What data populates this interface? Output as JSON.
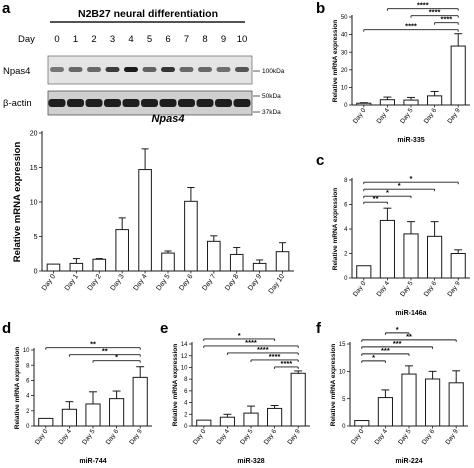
{
  "panels": {
    "a": "a",
    "b": "b",
    "c": "c",
    "d": "d",
    "e": "e",
    "f": "f"
  },
  "blot": {
    "title": "N2B27 neural differentiation",
    "day_label": "Day",
    "days": [
      "0",
      "1",
      "2",
      "3",
      "4",
      "5",
      "6",
      "7",
      "8",
      "9",
      "10"
    ],
    "lane_intensity": [
      0.25,
      0.35,
      0.35,
      0.7,
      0.95,
      0.4,
      0.75,
      0.35,
      0.35,
      0.3,
      0.5
    ],
    "rows": [
      {
        "label": "Npas4",
        "markers": [
          "100kDa"
        ]
      },
      {
        "label": "β-actin",
        "markers": [
          "50kDa",
          "37kDa"
        ]
      }
    ]
  },
  "chart_data": [
    {
      "id": "a",
      "type": "bar",
      "title": "Npas4",
      "ylabel": "Relative mRNA expression",
      "xlabel": "",
      "categories": [
        "Day 0",
        "Day 1",
        "Day 2",
        "Day 3",
        "Day 4",
        "Day 5",
        "Day 6",
        "Day 7",
        "Day 8",
        "Day 9",
        "Day 10"
      ],
      "values": [
        1.0,
        1.1,
        1.7,
        6.0,
        14.7,
        2.6,
        10.1,
        4.3,
        2.4,
        1.1,
        2.8
      ],
      "errors": [
        0.0,
        0.7,
        0.1,
        1.7,
        3.0,
        0.3,
        2.0,
        0.8,
        1.0,
        0.5,
        1.3
      ],
      "ylim": [
        0,
        20
      ],
      "yticks": [
        0,
        5,
        10,
        15,
        20
      ],
      "significance": []
    },
    {
      "id": "b",
      "type": "bar",
      "title": "",
      "ylabel": "Relative mRNA expression",
      "xlabel": "miR-335",
      "categories": [
        "Day 0",
        "Day 4",
        "Day 5",
        "Day 6",
        "Day 9"
      ],
      "values": [
        1.0,
        3.0,
        2.8,
        5.2,
        33.5
      ],
      "errors": [
        0.3,
        1.5,
        1.5,
        2.5,
        7.0
      ],
      "ylim": [
        0,
        50
      ],
      "yticks": [
        0,
        10,
        20,
        30,
        40,
        50
      ],
      "significance": [
        {
          "from": 4,
          "to": 1,
          "label": "****"
        },
        {
          "from": 4,
          "to": 2,
          "label": "****"
        },
        {
          "from": 4,
          "to": 3,
          "label": "****"
        },
        {
          "from": 4,
          "to": 0,
          "label": "****"
        }
      ]
    },
    {
      "id": "c",
      "type": "bar",
      "title": "",
      "ylabel": "Relative mRNA expression",
      "xlabel": "miR-146a",
      "categories": [
        "Day 0",
        "Day 4",
        "Day 5",
        "Day 6",
        "Day 9"
      ],
      "values": [
        1.0,
        4.7,
        3.6,
        3.4,
        2.0
      ],
      "errors": [
        0.0,
        1.0,
        1.0,
        1.2,
        0.3
      ],
      "ylim": [
        0,
        8
      ],
      "yticks": [
        0,
        2,
        4,
        6,
        8
      ],
      "significance": [
        {
          "from": 0,
          "to": 1,
          "label": "**"
        },
        {
          "from": 0,
          "to": 2,
          "label": "*"
        },
        {
          "from": 0,
          "to": 3,
          "label": "*"
        },
        {
          "from": 0,
          "to": 4,
          "label": "*"
        }
      ]
    },
    {
      "id": "d",
      "type": "bar",
      "title": "",
      "ylabel": "Relative mRNA expression",
      "xlabel": "miR-744",
      "categories": [
        "Day 0",
        "Day 4",
        "Day 5",
        "Day 6",
        "Day 9"
      ],
      "values": [
        1.0,
        2.2,
        2.9,
        3.6,
        6.4
      ],
      "errors": [
        0.0,
        1.0,
        1.6,
        1.0,
        1.4
      ],
      "ylim": [
        0,
        10
      ],
      "yticks": [
        0,
        2,
        4,
        6,
        8,
        10
      ],
      "significance": [
        {
          "from": 4,
          "to": 2,
          "label": "*"
        },
        {
          "from": 4,
          "to": 1,
          "label": "**"
        },
        {
          "from": 4,
          "to": 0,
          "label": "**"
        }
      ]
    },
    {
      "id": "e",
      "type": "bar",
      "title": "",
      "ylabel": "Relative mRNA expression",
      "xlabel": "miR-328",
      "categories": [
        "Day 0",
        "Day 4",
        "Day 5",
        "Day 6",
        "Day 9"
      ],
      "values": [
        1.0,
        1.5,
        2.2,
        3.0,
        9.0
      ],
      "errors": [
        0.0,
        0.5,
        1.2,
        0.5,
        0.4
      ],
      "ylim": [
        0,
        14
      ],
      "yticks": [
        0,
        2,
        4,
        6,
        8,
        10,
        12,
        14
      ],
      "significance": [
        {
          "from": 0,
          "to": 3,
          "label": "*"
        },
        {
          "from": 4,
          "to": 0,
          "label": "****"
        },
        {
          "from": 4,
          "to": 1,
          "label": "****"
        },
        {
          "from": 4,
          "to": 2,
          "label": "****"
        },
        {
          "from": 4,
          "to": 3,
          "label": "****"
        }
      ]
    },
    {
      "id": "f",
      "type": "bar",
      "title": "",
      "ylabel": "Relative mRNA expression",
      "xlabel": "miR-224",
      "categories": [
        "Day 0",
        "Day 4",
        "Day 5",
        "Day 6",
        "Day 9"
      ],
      "values": [
        1.0,
        5.2,
        9.5,
        8.6,
        7.9
      ],
      "errors": [
        0.0,
        1.4,
        1.5,
        1.4,
        2.2
      ],
      "ylim": [
        0,
        15
      ],
      "yticks": [
        0,
        5,
        10,
        15
      ],
      "significance": [
        {
          "from": 0,
          "to": 1,
          "label": "*"
        },
        {
          "from": 0,
          "to": 2,
          "label": "***"
        },
        {
          "from": 0,
          "to": 3,
          "label": "***"
        },
        {
          "from": 0,
          "to": 4,
          "label": "**"
        },
        {
          "from": 1,
          "to": 2,
          "label": "*"
        }
      ]
    }
  ]
}
